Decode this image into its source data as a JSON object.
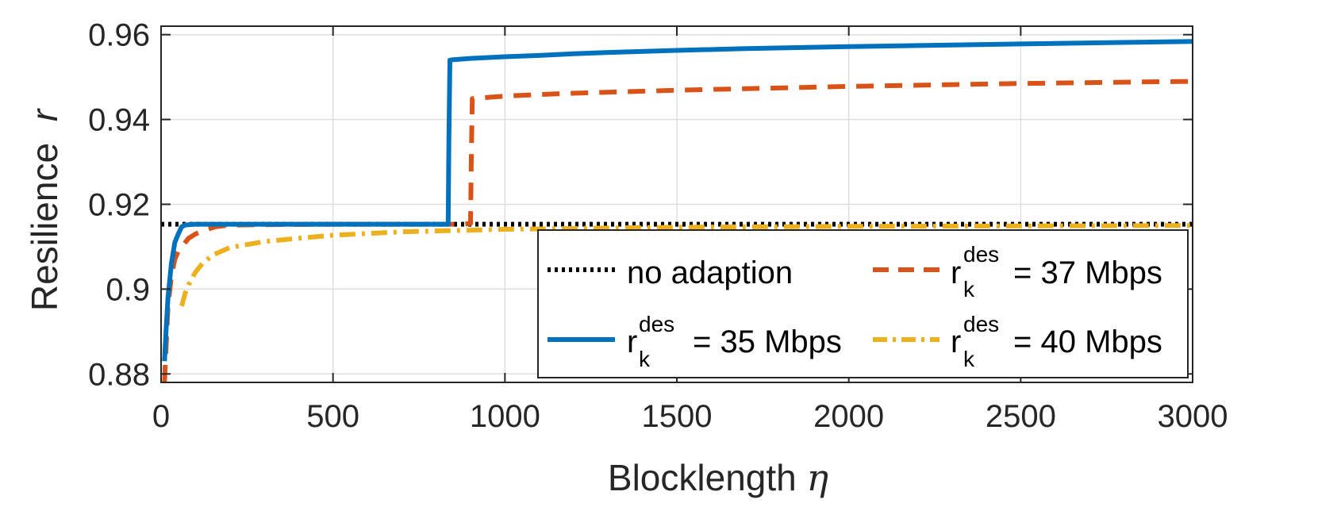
{
  "chart_data": {
    "type": "line",
    "xlabel": "Blocklength",
    "xlabel_symbol": "η",
    "ylabel": "Resilience",
    "ylabel_symbol": "r",
    "xlim": [
      0,
      3000
    ],
    "ylim": [
      0.878,
      0.962
    ],
    "x_ticks": [
      0,
      500,
      1000,
      1500,
      2000,
      2500,
      3000
    ],
    "y_ticks": [
      0.88,
      0.9,
      0.92,
      0.94,
      0.96
    ],
    "x_tick_labels": [
      "0",
      "500",
      "1000",
      "1500",
      "2000",
      "2500",
      "3000"
    ],
    "y_tick_labels": [
      "0.88",
      "0.9",
      "0.92",
      "0.94",
      "0.96"
    ],
    "grid": true,
    "legend_position": "bottom-right",
    "series": [
      {
        "label_text": "no adaption",
        "color": "#000000",
        "style": "dotted",
        "x": [
          0,
          3000
        ],
        "y": [
          0.9153,
          0.9153
        ]
      },
      {
        "label_base": "r",
        "label_sup": "des",
        "label_sub": "k",
        "label_value": "= 37 Mbps",
        "color": "#D95319",
        "style": "dashed",
        "x": [
          10,
          20,
          30,
          40,
          50,
          60,
          80,
          100,
          130,
          160,
          200,
          300,
          500,
          700,
          880,
          900,
          902,
          905,
          950,
          1000,
          1100,
          1200,
          1500,
          2000,
          2500,
          3000
        ],
        "y": [
          0.878,
          0.896,
          0.903,
          0.907,
          0.909,
          0.91,
          0.912,
          0.913,
          0.914,
          0.9147,
          0.9151,
          0.9152,
          0.9153,
          0.9153,
          0.9153,
          0.9155,
          0.93,
          0.9449,
          0.9452,
          0.9455,
          0.9459,
          0.9462,
          0.9469,
          0.9478,
          0.9485,
          0.949
        ]
      },
      {
        "label_base": "r",
        "label_sup": "des",
        "label_sub": "k",
        "label_value": "= 35 Mbps",
        "color": "#0072BD",
        "style": "solid",
        "x": [
          10,
          15,
          20,
          30,
          40,
          50,
          60,
          70,
          80,
          100,
          200,
          500,
          835,
          837,
          840,
          850,
          900,
          1000,
          1100,
          1200,
          1300,
          1500,
          1700,
          2000,
          2500,
          3000
        ],
        "y": [
          0.883,
          0.891,
          0.898,
          0.906,
          0.911,
          0.913,
          0.9147,
          0.9151,
          0.9152,
          0.9153,
          0.9153,
          0.9153,
          0.9153,
          0.935,
          0.954,
          0.9541,
          0.9544,
          0.9548,
          0.9551,
          0.9555,
          0.9558,
          0.9563,
          0.9567,
          0.9572,
          0.9578,
          0.9584
        ]
      },
      {
        "label_base": "r",
        "label_sup": "des",
        "label_sub": "k",
        "label_value": "= 40 Mbps",
        "color": "#EDB120",
        "style": "dash-dot",
        "x": [
          60,
          70,
          80,
          100,
          120,
          150,
          200,
          300,
          400,
          500,
          700,
          1000,
          1500,
          2000,
          2500,
          3000
        ],
        "y": [
          0.896,
          0.899,
          0.901,
          0.904,
          0.906,
          0.908,
          0.9098,
          0.9112,
          0.912,
          0.9127,
          0.9135,
          0.9141,
          0.9146,
          0.9148,
          0.9149,
          0.915
        ]
      }
    ]
  }
}
